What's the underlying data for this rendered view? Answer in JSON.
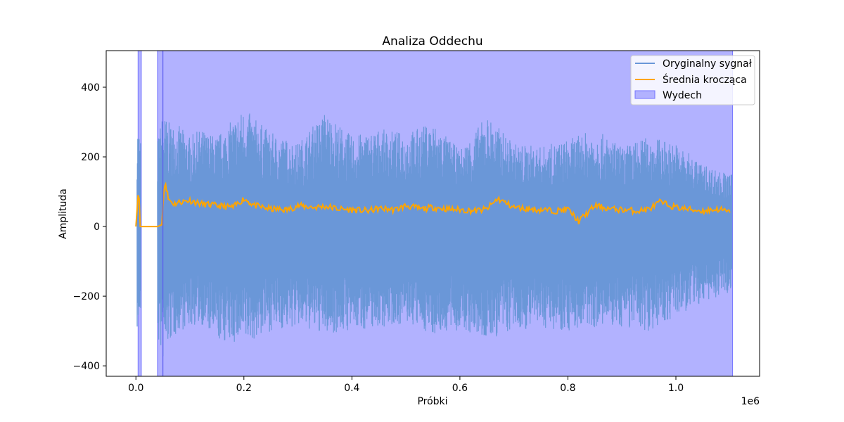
{
  "chart_data": {
    "type": "line",
    "title": "Analiza Oddechu",
    "xlabel": "Próbki",
    "ylabel": "Amplituda",
    "x_offset_label": "1e6",
    "xlim": [
      -0.055,
      1.155
    ],
    "ylim": [
      -430,
      505
    ],
    "x_ticks": [
      0.0,
      0.2,
      0.4,
      0.6,
      0.8,
      1.0
    ],
    "x_tick_labels": [
      "0.0",
      "0.2",
      "0.4",
      "0.6",
      "0.8",
      "1.0"
    ],
    "y_ticks": [
      -400,
      -200,
      0,
      200,
      400
    ],
    "y_tick_labels": [
      "−400",
      "−200",
      "0",
      "200",
      "400"
    ],
    "grid": false,
    "legend_position": "top-right",
    "colors": {
      "signal": "#6a97d8",
      "moving_average": "#ffa500",
      "exhale_fill": "#b2b2ff",
      "exhale_edge": "#7474ff"
    },
    "series": [
      {
        "name": "Oryginalny sygnał",
        "kind": "line",
        "envelope_x": [
          0.002,
          0.005,
          0.008,
          0.04,
          0.05,
          0.06,
          0.08,
          0.1,
          0.12,
          0.15,
          0.2,
          0.25,
          0.3,
          0.35,
          0.4,
          0.45,
          0.5,
          0.55,
          0.6,
          0.65,
          0.7,
          0.75,
          0.8,
          0.85,
          0.9,
          0.95,
          1.0,
          1.05,
          1.1
        ],
        "envelope_upper": [
          300,
          290,
          250,
          250,
          330,
          300,
          290,
          260,
          280,
          260,
          340,
          270,
          240,
          330,
          260,
          280,
          270,
          300,
          220,
          320,
          240,
          230,
          250,
          280,
          230,
          260,
          240,
          180,
          150
        ],
        "envelope_lower": [
          -300,
          -290,
          -260,
          -330,
          -390,
          -340,
          -300,
          -290,
          -280,
          -330,
          -340,
          -300,
          -290,
          -310,
          -300,
          -290,
          -280,
          -310,
          -300,
          -330,
          -300,
          -290,
          -300,
          -290,
          -290,
          -300,
          -260,
          -220,
          -190
        ]
      },
      {
        "name": "Średnia krocząca",
        "kind": "line",
        "x": [
          0.0,
          0.004,
          0.006,
          0.008,
          0.01,
          0.04,
          0.048,
          0.052,
          0.055,
          0.06,
          0.07,
          0.08,
          0.1,
          0.12,
          0.15,
          0.18,
          0.2,
          0.22,
          0.25,
          0.28,
          0.3,
          0.33,
          0.35,
          0.38,
          0.4,
          0.43,
          0.45,
          0.48,
          0.5,
          0.53,
          0.55,
          0.58,
          0.6,
          0.63,
          0.65,
          0.67,
          0.7,
          0.73,
          0.75,
          0.78,
          0.8,
          0.82,
          0.85,
          0.88,
          0.9,
          0.93,
          0.95,
          0.97,
          1.0,
          1.03,
          1.05,
          1.08,
          1.1
        ],
        "y": [
          0,
          90,
          80,
          0,
          0,
          0,
          5,
          110,
          125,
          80,
          65,
          70,
          75,
          65,
          60,
          55,
          80,
          60,
          50,
          48,
          60,
          55,
          58,
          50,
          48,
          45,
          52,
          48,
          60,
          50,
          55,
          50,
          48,
          45,
          50,
          80,
          55,
          50,
          48,
          45,
          50,
          15,
          60,
          50,
          48,
          45,
          50,
          70,
          55,
          48,
          45,
          50,
          40
        ]
      },
      {
        "name": "Wydech",
        "kind": "fill",
        "spans": [
          [
            0.004,
            0.01
          ],
          [
            0.04,
            1.105
          ]
        ],
        "marker_x": 0.05
      }
    ]
  }
}
